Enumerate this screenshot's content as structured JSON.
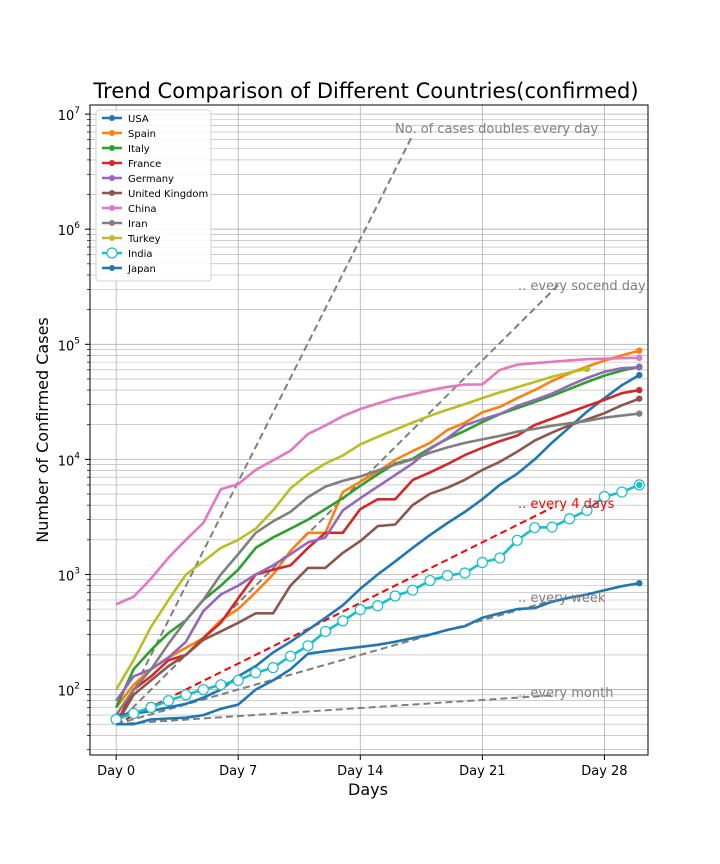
{
  "chart_data": {
    "type": "line",
    "title": "Trend Comparison of Different Countries(confirmed)",
    "xlabel": "Days",
    "ylabel": "Number of Confirmed Cases",
    "yscale": "log",
    "xlim": [
      -1.5,
      30.5
    ],
    "ylim": [
      27,
      12000000
    ],
    "x_ticks": [
      0,
      7,
      14,
      21,
      28
    ],
    "x_tick_labels": [
      "Day 0",
      "Day 7",
      "Day 14",
      "Day 21",
      "Day 28"
    ],
    "y_ticks": [
      100,
      1000,
      10000,
      100000,
      1000000,
      10000000
    ],
    "y_tick_labels": [
      {
        "base": "10",
        "exp": "2"
      },
      {
        "base": "10",
        "exp": "3"
      },
      {
        "base": "10",
        "exp": "4"
      },
      {
        "base": "10",
        "exp": "5"
      },
      {
        "base": "10",
        "exp": "6"
      },
      {
        "base": "10",
        "exp": "7"
      }
    ],
    "grid": "both-major-minor",
    "legend_position": "top-left",
    "series": [
      {
        "name": "USA",
        "color": "#1f77b4",
        "marker": "dot",
        "values": [
          60,
          62,
          65,
          70,
          75,
          85,
          100,
          130,
          160,
          210,
          260,
          330,
          420,
          540,
          750,
          1000,
          1300,
          1700,
          2200,
          2800,
          3500,
          4500,
          6000,
          7500,
          10000,
          14000,
          19000,
          26000,
          34000,
          44000,
          54000
        ]
      },
      {
        "name": "Spain",
        "color": "#ff7f0e",
        "marker": "dot",
        "values": [
          70,
          110,
          150,
          190,
          230,
          280,
          400,
          500,
          700,
          1000,
          1600,
          2300,
          2300,
          5200,
          6400,
          7800,
          9900,
          11800,
          13900,
          18000,
          20800,
          25600,
          28600,
          34000,
          40000,
          48000,
          56000,
          64000,
          72000,
          80000,
          88000
        ]
      },
      {
        "name": "Italy",
        "color": "#2ca02c",
        "marker": "dot",
        "values": [
          70,
          150,
          220,
          310,
          400,
          600,
          800,
          1100,
          1700,
          2100,
          2500,
          3000,
          3700,
          4600,
          5900,
          7400,
          9200,
          10100,
          12500,
          15100,
          17700,
          21100,
          24700,
          27900,
          31500,
          35700,
          41000,
          47000,
          53500,
          59100,
          63900
        ]
      },
      {
        "name": "France",
        "color": "#d62728",
        "marker": "dot",
        "values": [
          50,
          100,
          130,
          180,
          200,
          280,
          380,
          620,
          1000,
          1100,
          1200,
          1700,
          2300,
          2300,
          3700,
          4500,
          4500,
          6600,
          7700,
          9100,
          10900,
          12600,
          14400,
          16100,
          19900,
          22600,
          25600,
          29100,
          32900,
          37600,
          40000
        ]
      },
      {
        "name": "Germany",
        "color": "#9467bd",
        "marker": "dot",
        "values": [
          80,
          130,
          150,
          190,
          260,
          480,
          670,
          800,
          1000,
          1200,
          1500,
          1900,
          2100,
          3600,
          4600,
          5800,
          7300,
          9200,
          12300,
          15300,
          19800,
          22300,
          24800,
          29100,
          32800,
          37300,
          43900,
          50900,
          57700,
          62000,
          63000
        ]
      },
      {
        "name": "United Kingdom",
        "color": "#8c564b",
        "marker": "dot",
        "values": [
          50,
          90,
          120,
          160,
          200,
          270,
          320,
          380,
          460,
          460,
          800,
          1140,
          1140,
          1540,
          1950,
          2630,
          2720,
          4010,
          5020,
          5680,
          6650,
          8080,
          9530,
          11650,
          14550,
          17100,
          19800,
          22200,
          25200,
          29500,
          33700
        ]
      },
      {
        "name": "China",
        "color": "#e377c2",
        "marker": "dot",
        "values": [
          550,
          640,
          920,
          1400,
          2000,
          2800,
          5500,
          6100,
          8100,
          9800,
          11900,
          16600,
          19700,
          23700,
          27400,
          30600,
          34100,
          36800,
          39800,
          42600,
          44600,
          44700,
          59800,
          66500,
          68500,
          70500,
          72400,
          74200,
          75000,
          75700,
          76200
        ]
      },
      {
        "name": "Iran",
        "color": "#7f7f7f",
        "marker": "dot",
        "values": [
          60,
          100,
          150,
          250,
          400,
          600,
          1000,
          1500,
          2300,
          2900,
          3500,
          4700,
          5800,
          6500,
          7100,
          8000,
          9000,
          10000,
          11400,
          12700,
          13900,
          14900,
          16000,
          17400,
          18400,
          19600,
          20600,
          21600,
          23000,
          24000,
          25000
        ]
      },
      {
        "name": "Turkey",
        "color": "#bcbd22",
        "marker": "dot",
        "values": [
          100,
          180,
          350,
          600,
          1000,
          1300,
          1700,
          2000,
          2500,
          3600,
          5600,
          7400,
          9200,
          10800,
          13500,
          15700,
          18100,
          20900,
          23900,
          27000,
          30200,
          34100,
          38200,
          42300,
          47000,
          52200,
          56900,
          61000
        ]
      },
      {
        "name": "India",
        "color": "#17becf",
        "marker": "circle-open",
        "values": [
          55,
          62,
          70,
          80,
          90,
          100,
          110,
          120,
          140,
          155,
          195,
          240,
          320,
          395,
          495,
          535,
          650,
          730,
          885,
          980,
          1030,
          1270,
          1390,
          1980,
          2550,
          2580,
          3050,
          3600,
          4750,
          5200,
          6000
        ]
      },
      {
        "name": "Japan",
        "color": "#1f77b4",
        "marker": "dot",
        "values": [
          50,
          50,
          55,
          56,
          57,
          60,
          68,
          74,
          100,
          120,
          150,
          205,
          215,
          225,
          235,
          245,
          260,
          280,
          300,
          330,
          355,
          420,
          460,
          500,
          510,
          580,
          630,
          670,
          730,
          790,
          840
        ]
      }
    ],
    "reference_lines": [
      {
        "label": "No. of cases doubles every day",
        "color": "#7f7f7f",
        "doubling_days": 1,
        "x_end": 17
      },
      {
        "label": ".. every socend day",
        "color": "#7f7f7f",
        "doubling_days": 2,
        "x_end": 25.5
      },
      {
        "label": ".. every 4 days",
        "color": "#ff0000",
        "doubling_days": 4,
        "x_end": 25
      },
      {
        "label": ".. every week",
        "color": "#7f7f7f",
        "doubling_days": 7,
        "x_end": 25
      },
      {
        "label": ".. every month",
        "color": "#7f7f7f",
        "doubling_days": 30,
        "x_end": 25
      }
    ],
    "reference_start_value": 50
  }
}
